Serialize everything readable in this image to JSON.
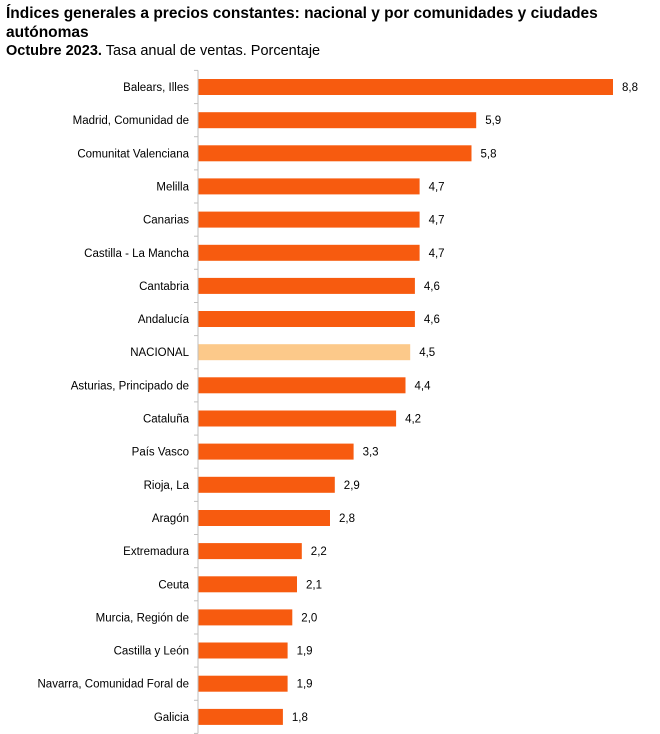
{
  "title": "Índices generales a precios constantes: nacional y por comunidades y ciudades autónomas",
  "subtitle_bold": "Octubre 2023.",
  "subtitle_rest": " Tasa anual de ventas. Porcentaje",
  "colors": {
    "bar": "#f75b0f",
    "highlight": "#fcc98a",
    "axis": "#bfbfbf"
  },
  "chart_data": {
    "type": "bar",
    "orientation": "horizontal",
    "categories": [
      "Balears, Illes",
      "Madrid, Comunidad de",
      "Comunitat Valenciana",
      "Melilla",
      "Canarias",
      "Castilla - La Mancha",
      "Cantabria",
      "Andalucía",
      "NACIONAL",
      "Asturias, Principado de",
      "Cataluña",
      "País Vasco",
      "Rioja, La",
      "Aragón",
      "Extremadura",
      "Ceuta",
      "Murcia, Región de",
      "Castilla y León",
      "Navarra, Comunidad Foral de",
      "Galicia"
    ],
    "values": [
      8.8,
      5.9,
      5.8,
      4.7,
      4.7,
      4.7,
      4.6,
      4.6,
      4.5,
      4.4,
      4.2,
      3.3,
      2.9,
      2.8,
      2.2,
      2.1,
      2.0,
      1.9,
      1.9,
      1.8
    ],
    "value_labels": [
      "8,8",
      "5,9",
      "5,8",
      "4,7",
      "4,7",
      "4,7",
      "4,6",
      "4,6",
      "4,5",
      "4,4",
      "4,2",
      "3,3",
      "2,9",
      "2,8",
      "2,2",
      "2,1",
      "2,0",
      "1,9",
      "1,9",
      "1,8"
    ],
    "highlight_category": "NACIONAL",
    "xlim": [
      0,
      8.8
    ],
    "grid": false,
    "legend": "none"
  }
}
